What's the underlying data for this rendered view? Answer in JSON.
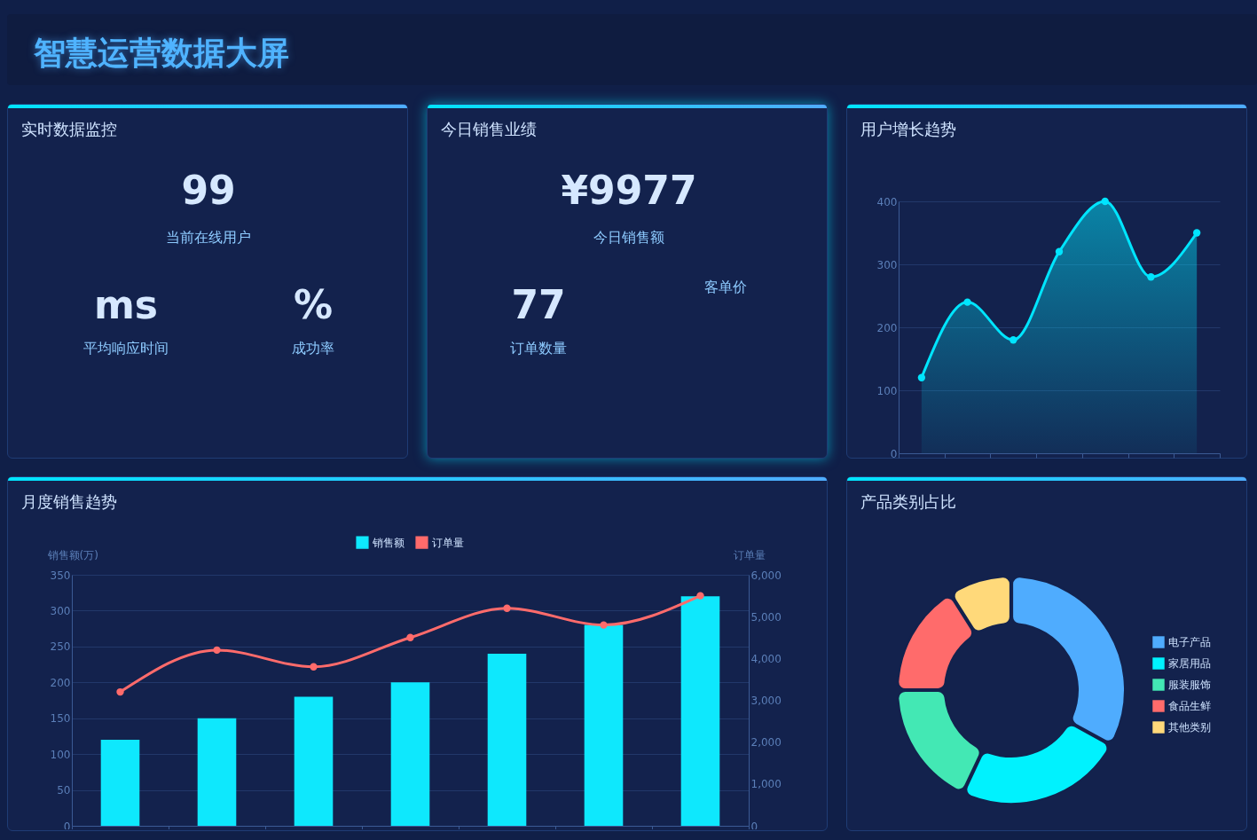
{
  "chart_data": [
    {
      "type": "other",
      "title": "智慧运营数据大屏"
    },
    {
      "type": "other",
      "title": "实时数据监控",
      "annotations": [
        "99",
        "当前在线用户",
        "ms",
        "平均响应时间",
        "%",
        "成功率"
      ]
    },
    {
      "type": "other",
      "title": "今日销售业绩",
      "annotations": [
        "¥9977",
        "今日销售额",
        "77",
        "订单数量",
        "客单价"
      ]
    },
    {
      "type": "area",
      "title": "用户增长趋势",
      "categories": [
        null,
        null,
        null,
        null,
        null,
        null,
        null
      ],
      "series": [
        {
          "color": "#00e5ff",
          "values": [
            120,
            240,
            180,
            320,
            400,
            280,
            350
          ]
        }
      ],
      "ylim": [
        0,
        400
      ],
      "yticks": [
        0,
        100,
        200,
        300,
        400
      ],
      "grid": "y",
      "marker": "circle",
      "tick_labels": "y"
    },
    {
      "type": "bar",
      "title": "月度销售趋势",
      "categories": [
        null,
        null,
        null,
        null,
        null,
        null,
        null
      ],
      "series": [
        {
          "name": "销售额",
          "color": "#0ee8fd",
          "values": [
            120,
            150,
            180,
            200,
            240,
            280,
            320
          ]
        },
        {
          "name": "订单量",
          "type": "line",
          "axis": "y2",
          "color": "#ff6b6b",
          "values": [
            3200,
            4200,
            3800,
            4500,
            5200,
            4800,
            5500
          ]
        }
      ],
      "ylabel": "销售额(万)",
      "y2label": "订单量",
      "ylim": [
        0,
        350
      ],
      "yticks": [
        0,
        50,
        100,
        150,
        200,
        250,
        300,
        350
      ],
      "y2lim": [
        0,
        6000
      ],
      "y2ticks": [
        0,
        {
          "value": 1000,
          "label": "1,000"
        },
        {
          "value": 2000,
          "label": "2,000"
        },
        {
          "value": 3000,
          "label": "3,000"
        },
        {
          "value": 4000,
          "label": "4,000"
        },
        {
          "value": 5000,
          "label": "5,000"
        },
        {
          "value": 6000,
          "label": "6,000"
        }
      ],
      "grid": "y",
      "legend": "top",
      "marker": "circle",
      "tick_labels": "y"
    },
    {
      "type": "donut",
      "title": "产品类别占比",
      "categories": [
        "电子产品",
        "家居用品",
        "服装服饰",
        "食品生鲜",
        "其他类别"
      ],
      "values": [
        33,
        24,
        18,
        16,
        9
      ],
      "colors": [
        "#4facfe",
        "#00f2fe",
        "#43e8b4",
        "#ff6b6b",
        "#ffd97a"
      ],
      "legend": "right"
    }
  ]
}
